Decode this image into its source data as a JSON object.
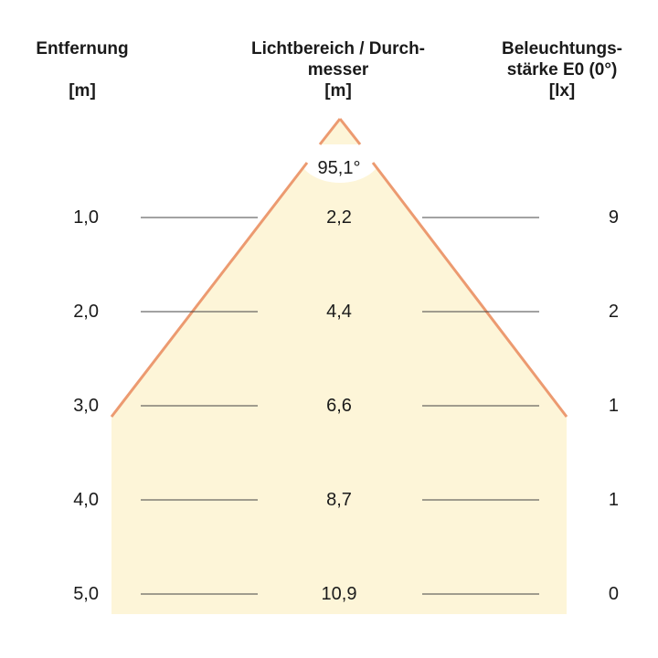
{
  "headers": {
    "distance": {
      "title": "Entfernung",
      "unit": "[m]"
    },
    "diameter": {
      "title_line1": "Lichtbereich / Durch-",
      "title_line2": "messer",
      "unit": "[m]"
    },
    "illuminance": {
      "title_line1": "Beleuchtungs-",
      "title_line2": "stärke E0 (0°)",
      "unit": "[lx]"
    }
  },
  "beam_angle": "95,1°",
  "rows": [
    {
      "distance": "1,0",
      "diameter": "2,2",
      "illuminance": "9"
    },
    {
      "distance": "2,0",
      "diameter": "4,4",
      "illuminance": "2"
    },
    {
      "distance": "3,0",
      "diameter": "6,6",
      "illuminance": "1"
    },
    {
      "distance": "4,0",
      "diameter": "8,7",
      "illuminance": "1"
    },
    {
      "distance": "5,0",
      "diameter": "10,9",
      "illuminance": "0"
    }
  ],
  "colors": {
    "beam_fill": "#fdf5d8",
    "beam_edge": "#ec9a70",
    "rule_line": "#444444"
  }
}
